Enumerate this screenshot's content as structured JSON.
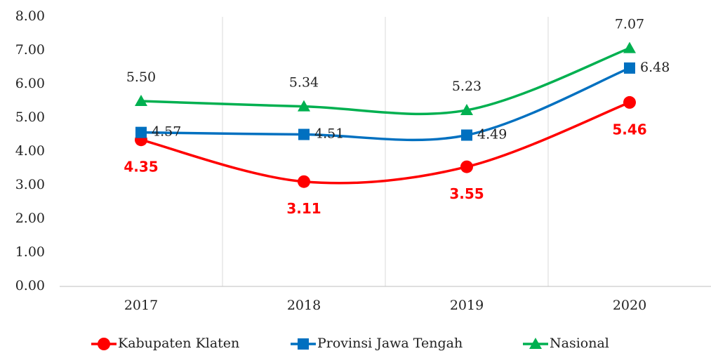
{
  "chart_data": {
    "type": "line",
    "categories": [
      "2017",
      "2018",
      "2019",
      "2020"
    ],
    "series": [
      {
        "name": "Kabupaten Klaten",
        "color": "#ff0000",
        "marker": "circle",
        "values": [
          4.35,
          3.11,
          3.55,
          5.46
        ],
        "value_labels": [
          "4.35",
          "3.11",
          "3.55",
          "5.46"
        ]
      },
      {
        "name": "Provinsi Jawa Tengah",
        "color": "#0070c0",
        "marker": "square",
        "values": [
          4.57,
          4.51,
          4.49,
          6.48
        ],
        "value_labels": [
          "4.57",
          "4.51",
          "4.49",
          "6.48"
        ]
      },
      {
        "name": "Nasional",
        "color": "#00b050",
        "marker": "triangle",
        "values": [
          5.5,
          5.34,
          5.23,
          7.07
        ],
        "value_labels": [
          "5.50",
          "5.34",
          "5.23",
          "7.07"
        ]
      }
    ],
    "ylim": [
      0,
      8
    ],
    "yticks": [
      {
        "value": 0,
        "label": "0.00"
      },
      {
        "value": 1,
        "label": "1.00"
      },
      {
        "value": 2,
        "label": "2.00"
      },
      {
        "value": 3,
        "label": "3.00"
      },
      {
        "value": 4,
        "label": "4.00"
      },
      {
        "value": 5,
        "label": "5.00"
      },
      {
        "value": 6,
        "label": "6.00"
      },
      {
        "value": 7,
        "label": "7.00"
      },
      {
        "value": 8,
        "label": "8.00"
      }
    ],
    "smooth": true,
    "legend": "bottom"
  }
}
